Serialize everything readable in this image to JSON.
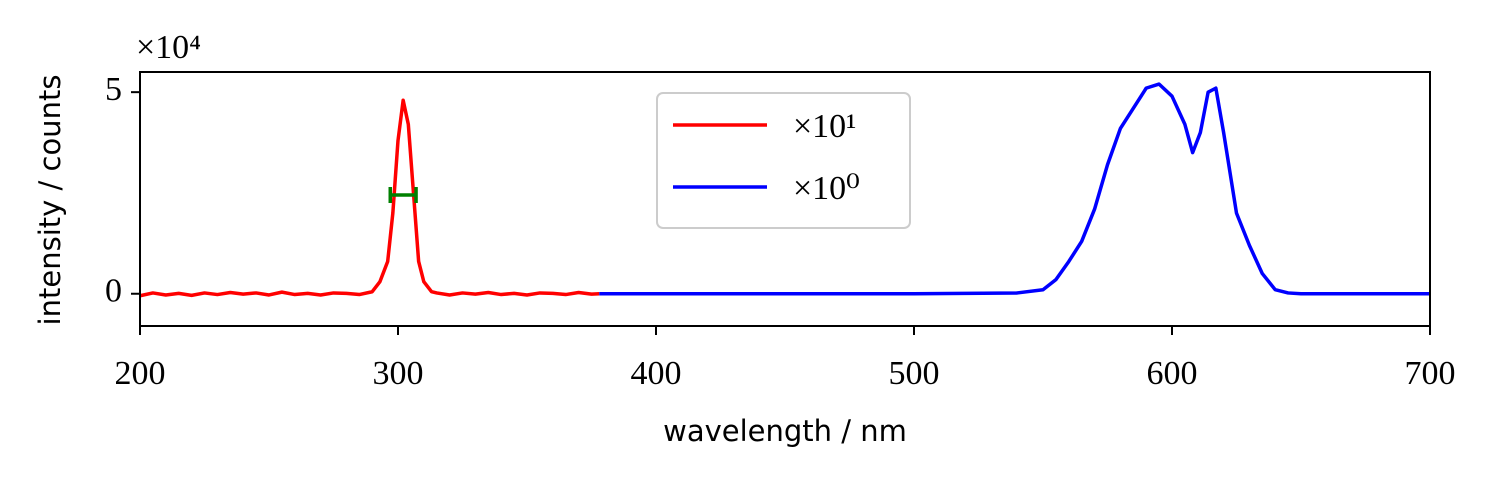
{
  "chart_data": {
    "type": "line",
    "xlabel": "wavelength / nm",
    "ylabel": "intensity / counts",
    "offset_text": "×10⁴",
    "xlim": [
      200,
      700
    ],
    "ylim": [
      -0.8,
      5.5
    ],
    "xticks": [
      200,
      300,
      400,
      500,
      600,
      700
    ],
    "yticks": [
      0,
      5
    ],
    "legend": "upper center",
    "series": [
      {
        "name": "×10¹",
        "color": "#ff0000",
        "x": [
          200,
          205,
          210,
          215,
          220,
          225,
          230,
          235,
          240,
          245,
          250,
          255,
          260,
          265,
          270,
          275,
          280,
          285,
          290,
          293,
          296,
          298,
          300,
          302,
          304,
          306,
          308,
          310,
          313,
          315,
          320,
          325,
          330,
          335,
          340,
          345,
          350,
          355,
          360,
          365,
          370,
          375,
          378
        ],
        "values": [
          -0.05,
          0.02,
          -0.03,
          0.01,
          -0.04,
          0.02,
          -0.02,
          0.03,
          -0.01,
          0.02,
          -0.03,
          0.04,
          -0.02,
          0.01,
          -0.03,
          0.02,
          0.01,
          -0.02,
          0.05,
          0.3,
          0.8,
          2.0,
          3.8,
          4.8,
          4.2,
          2.5,
          0.8,
          0.3,
          0.05,
          0.02,
          -0.03,
          0.02,
          -0.01,
          0.03,
          -0.02,
          0.01,
          -0.03,
          0.02,
          0.01,
          -0.02,
          0.03,
          -0.01,
          0.0
        ]
      },
      {
        "name": "×10⁰",
        "color": "#0000ff",
        "x": [
          378,
          400,
          450,
          500,
          540,
          550,
          555,
          560,
          565,
          570,
          575,
          580,
          585,
          590,
          595,
          600,
          605,
          608,
          611,
          614,
          617,
          620,
          625,
          630,
          635,
          640,
          645,
          650,
          670,
          700
        ],
        "values": [
          0,
          0,
          0,
          0,
          0.02,
          0.1,
          0.35,
          0.8,
          1.3,
          2.1,
          3.2,
          4.1,
          4.6,
          5.1,
          5.2,
          4.9,
          4.2,
          3.5,
          4.0,
          5.0,
          5.1,
          4.0,
          2.0,
          1.2,
          0.5,
          0.1,
          0.02,
          0,
          0,
          0
        ]
      }
    ],
    "errorbar": {
      "x": 302,
      "y": 2.45,
      "xerr": 5,
      "color": "#008000"
    }
  }
}
